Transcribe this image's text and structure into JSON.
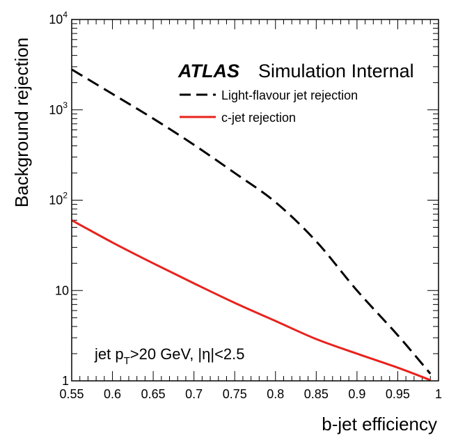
{
  "chart_data": {
    "type": "line",
    "xlabel": "b-jet efficiency",
    "ylabel": "Background rejection",
    "xlim": [
      0.55,
      1.0
    ],
    "ylim": [
      1,
      10000
    ],
    "ylog": true,
    "grid": false,
    "x_ticks": [
      0.55,
      0.6,
      0.65,
      0.7,
      0.75,
      0.8,
      0.85,
      0.9,
      0.95,
      1.0
    ],
    "x_tick_labels": [
      "0.55",
      "0.6",
      "0.65",
      "0.7",
      "0.75",
      "0.8",
      "0.85",
      "0.9",
      "0.95",
      "1"
    ],
    "y_ticks": [
      {
        "value": 1,
        "base": "1",
        "exp": ""
      },
      {
        "value": 10,
        "base": "10",
        "exp": ""
      },
      {
        "value": 100,
        "base": "10",
        "exp": "2"
      },
      {
        "value": 1000,
        "base": "10",
        "exp": "3"
      },
      {
        "value": 10000,
        "base": "10",
        "exp": "4"
      }
    ],
    "legend_position": "top-right",
    "atlas_label": {
      "bold": "ATLAS",
      "rest": "Simulation Internal"
    },
    "annotation": {
      "prefix": "jet p",
      "subscript": "T",
      "suffix": ">20 GeV, |η|<2.5"
    },
    "series": [
      {
        "name": "Light-flavour jet rejection",
        "color": "#000000",
        "style": "dashed",
        "x": [
          0.55,
          0.6,
          0.65,
          0.7,
          0.75,
          0.8,
          0.85,
          0.9,
          0.95,
          0.99
        ],
        "y": [
          2800,
          1500,
          800,
          410,
          200,
          95,
          35,
          10,
          3.2,
          1.2
        ]
      },
      {
        "name": "c-jet rejection",
        "color": "#e8221c",
        "style": "solid",
        "x": [
          0.55,
          0.6,
          0.65,
          0.7,
          0.75,
          0.8,
          0.85,
          0.9,
          0.95,
          0.99
        ],
        "y": [
          60,
          34,
          20,
          12,
          7.3,
          4.6,
          2.9,
          2.0,
          1.4,
          1.02
        ]
      }
    ]
  }
}
